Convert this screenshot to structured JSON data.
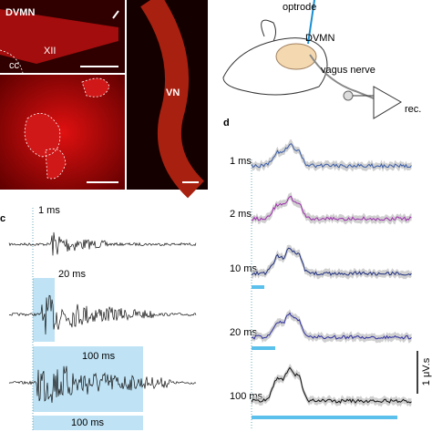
{
  "panel_a": {
    "dvmn": "DVMN",
    "xii": "XII",
    "cc": "cc",
    "vn": "VN"
  },
  "panel_b": {
    "optrode": "optrode",
    "dvmn": "DVMN",
    "nerve": "vagus nerve",
    "rec": "rec."
  },
  "panel_c": {
    "label": "c",
    "traces": [
      "1 ms",
      "20 ms",
      "100 ms"
    ],
    "bar_label": "100 ms"
  },
  "panel_d": {
    "label": "d",
    "traces": [
      "1 ms",
      "2 ms",
      "10 ms",
      "20 ms",
      "100 ms"
    ],
    "scale_label": "1 μV.s"
  }
}
